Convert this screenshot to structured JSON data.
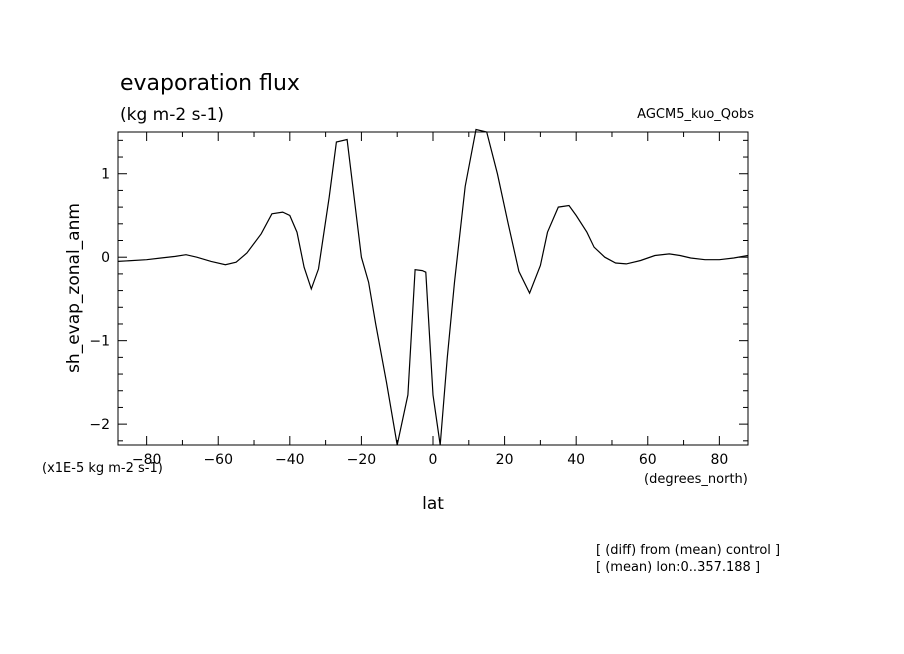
{
  "chart_data": {
    "type": "line",
    "title": "evaporation flux",
    "units": "(kg m-2 s-1)",
    "experiment": "AGCM5_kuo_Qobs",
    "ylabel": "sh_evap_zonal_anm",
    "xlabel": "lat",
    "x_units": "(degrees_north)",
    "y_scale_note": "(x1E-5 kg m-2 s-1)",
    "notes": [
      "[ (diff) from (mean) control ]",
      "[ (mean) lon:0..357.188 ]"
    ],
    "xlim": [
      -88,
      88
    ],
    "ylim": [
      -2.25,
      1.5
    ],
    "x_ticks": [
      -80,
      -60,
      -40,
      -20,
      0,
      20,
      40,
      60,
      80
    ],
    "y_ticks": [
      -2,
      -1,
      0,
      1
    ],
    "x": [
      -88,
      -80,
      -76,
      -72,
      -69,
      -66,
      -62,
      -58,
      -55,
      -52,
      -48,
      -45,
      -42,
      -40,
      -38,
      -36,
      -34,
      -32,
      -29,
      -27,
      -24,
      -22,
      -20,
      -18,
      -16,
      -13,
      -10,
      -7,
      -5,
      -3,
      -2,
      0,
      2,
      4,
      6,
      9,
      12,
      15,
      18,
      21,
      24,
      27,
      30,
      32,
      35,
      38,
      40,
      43,
      45,
      48,
      51,
      54,
      58,
      62,
      66,
      69,
      72,
      76,
      80,
      84,
      88
    ],
    "y": [
      -0.05,
      -0.03,
      -0.01,
      0.01,
      0.03,
      0.0,
      -0.05,
      -0.09,
      -0.06,
      0.05,
      0.28,
      0.52,
      0.54,
      0.5,
      0.3,
      -0.12,
      -0.38,
      -0.14,
      0.72,
      1.38,
      1.41,
      0.7,
      0.0,
      -0.3,
      -0.8,
      -1.5,
      -2.25,
      -1.65,
      -0.15,
      -0.16,
      -0.18,
      -1.65,
      -2.25,
      -1.2,
      -0.3,
      0.85,
      1.53,
      1.5,
      1.0,
      0.4,
      -0.17,
      -0.43,
      -0.1,
      0.3,
      0.6,
      0.62,
      0.5,
      0.3,
      0.12,
      0.0,
      -0.07,
      -0.08,
      -0.04,
      0.02,
      0.04,
      0.02,
      -0.01,
      -0.03,
      -0.03,
      -0.01,
      0.02
    ],
    "line_color": "#000000"
  }
}
